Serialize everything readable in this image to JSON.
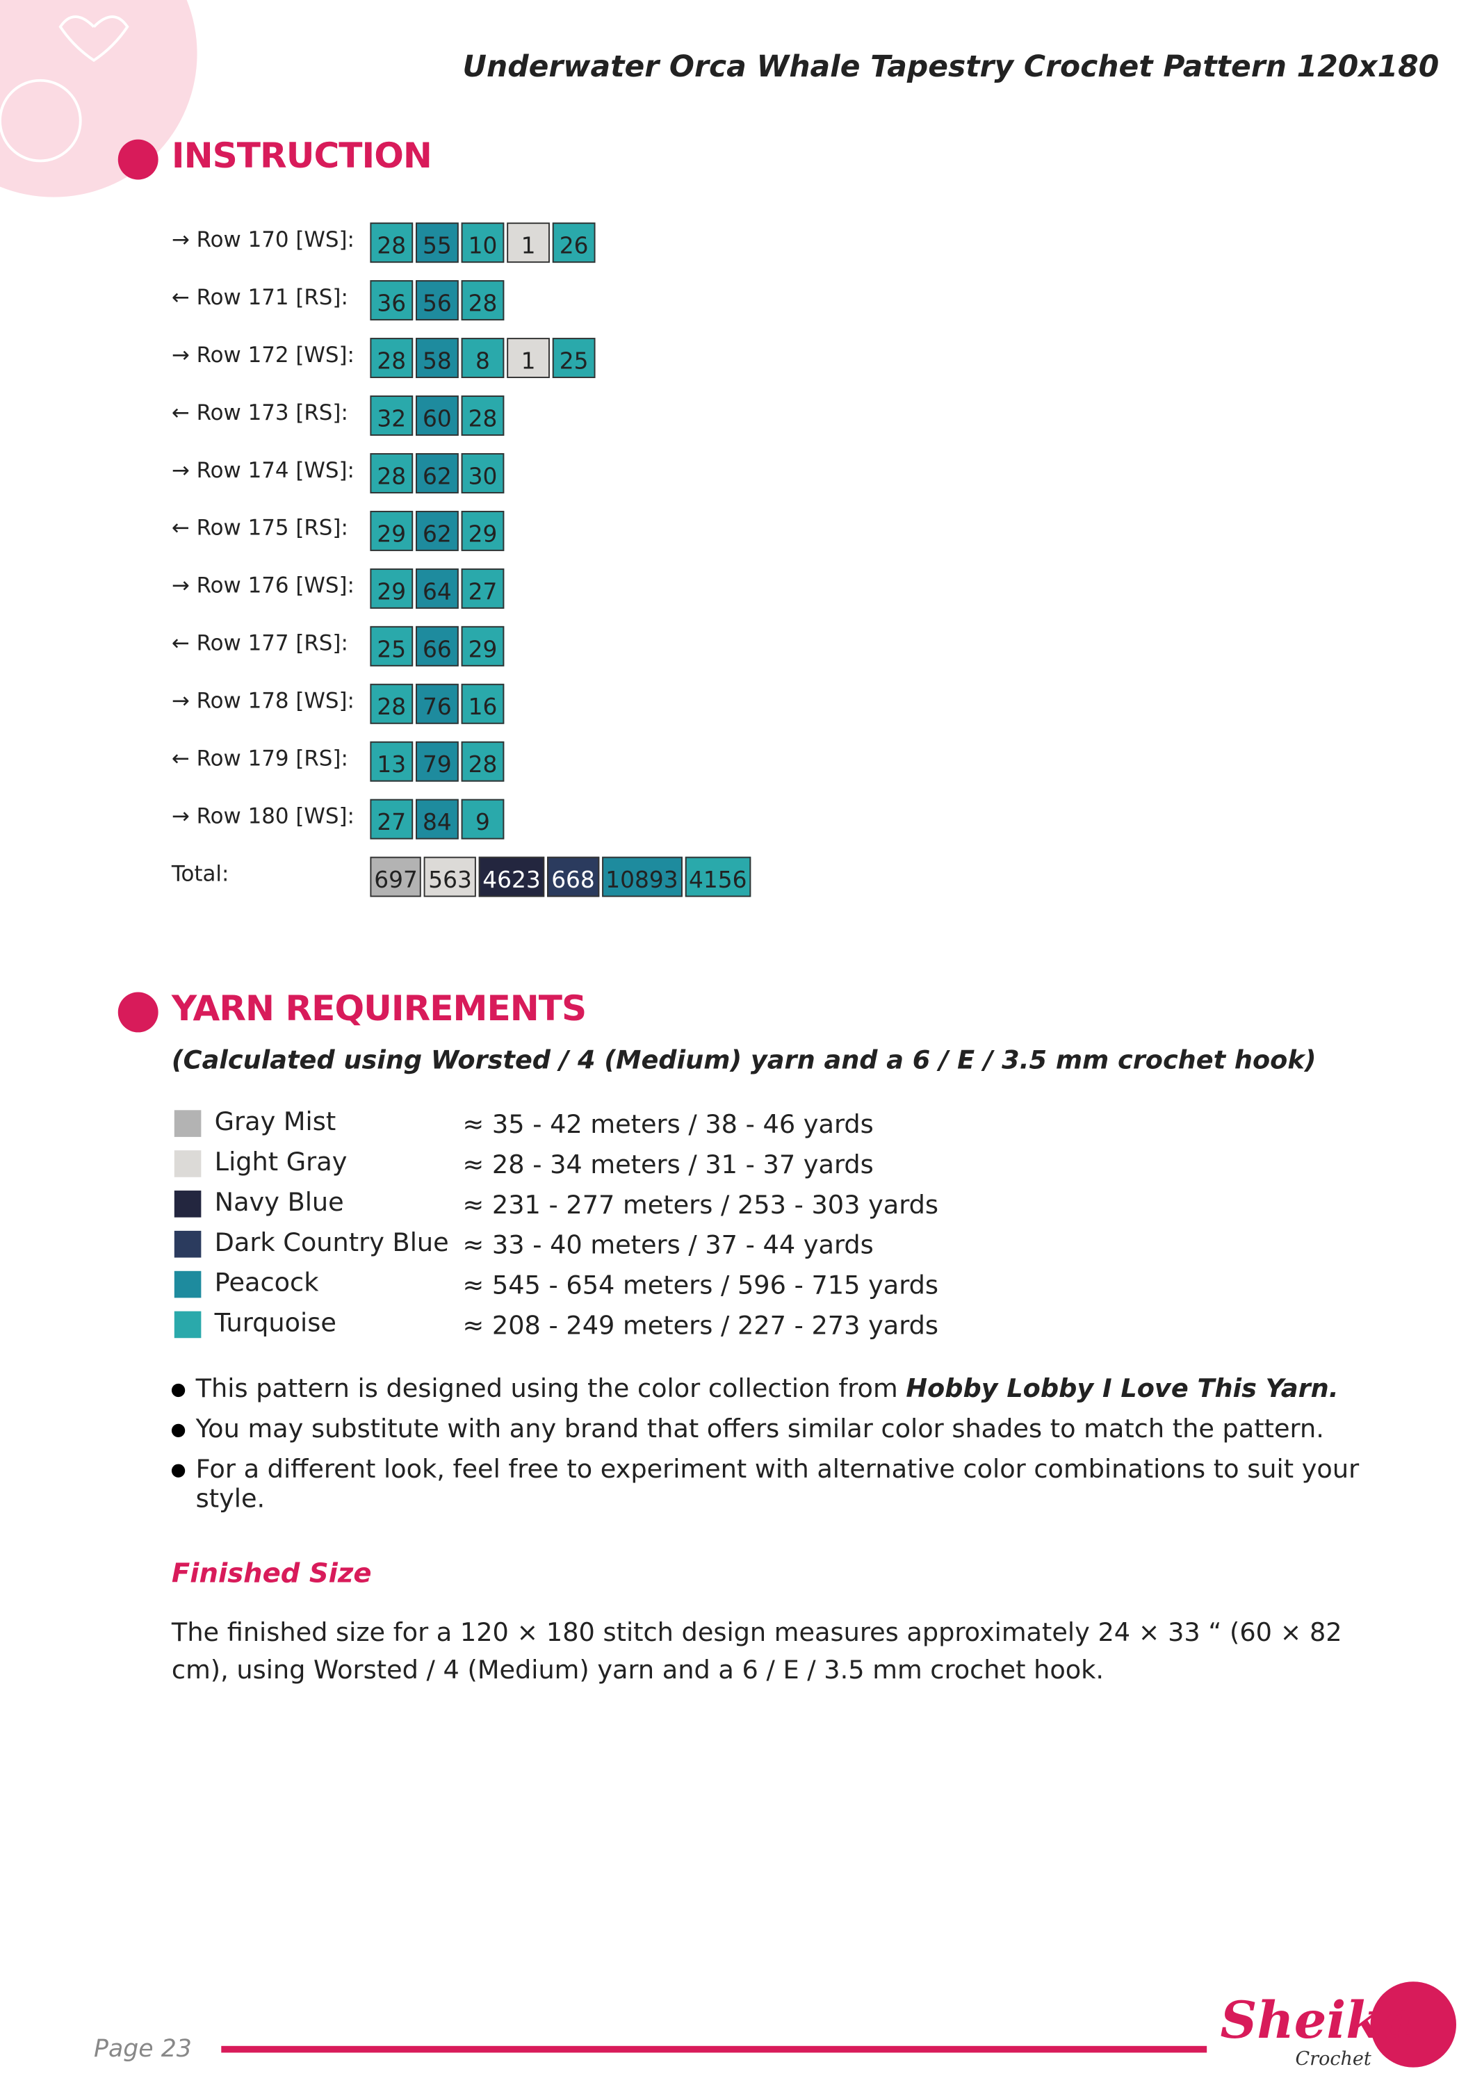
{
  "header": {
    "title": "Underwater Orca Whale Tapestry Crochet Pattern 120x180"
  },
  "instruction": {
    "heading": "INSTRUCTION",
    "rows": [
      {
        "label": "→ Row 170 [WS]:",
        "cells": [
          {
            "value": 28,
            "color": "#2aa9ab"
          },
          {
            "value": 55,
            "color": "#1e8b9e"
          },
          {
            "value": 10,
            "color": "#2aa9ab"
          },
          {
            "value": 1,
            "color": "#dcdad7"
          },
          {
            "value": 26,
            "color": "#2aa9ab"
          }
        ]
      },
      {
        "label": "← Row 171 [RS]:",
        "cells": [
          {
            "value": 36,
            "color": "#2aa9ab"
          },
          {
            "value": 56,
            "color": "#1e8b9e"
          },
          {
            "value": 28,
            "color": "#2aa9ab"
          }
        ]
      },
      {
        "label": "→ Row 172 [WS]:",
        "cells": [
          {
            "value": 28,
            "color": "#2aa9ab"
          },
          {
            "value": 58,
            "color": "#1e8b9e"
          },
          {
            "value": 8,
            "color": "#2aa9ab"
          },
          {
            "value": 1,
            "color": "#dcdad7"
          },
          {
            "value": 25,
            "color": "#2aa9ab"
          }
        ]
      },
      {
        "label": "← Row 173 [RS]:",
        "cells": [
          {
            "value": 32,
            "color": "#2aa9ab"
          },
          {
            "value": 60,
            "color": "#1e8b9e"
          },
          {
            "value": 28,
            "color": "#2aa9ab"
          }
        ]
      },
      {
        "label": "→ Row 174 [WS]:",
        "cells": [
          {
            "value": 28,
            "color": "#2aa9ab"
          },
          {
            "value": 62,
            "color": "#1e8b9e"
          },
          {
            "value": 30,
            "color": "#2aa9ab"
          }
        ]
      },
      {
        "label": "← Row 175 [RS]:",
        "cells": [
          {
            "value": 29,
            "color": "#2aa9ab"
          },
          {
            "value": 62,
            "color": "#1e8b9e"
          },
          {
            "value": 29,
            "color": "#2aa9ab"
          }
        ]
      },
      {
        "label": "→ Row 176 [WS]:",
        "cells": [
          {
            "value": 29,
            "color": "#2aa9ab"
          },
          {
            "value": 64,
            "color": "#1e8b9e"
          },
          {
            "value": 27,
            "color": "#2aa9ab"
          }
        ]
      },
      {
        "label": "← Row 177 [RS]:",
        "cells": [
          {
            "value": 25,
            "color": "#2aa9ab"
          },
          {
            "value": 66,
            "color": "#1e8b9e"
          },
          {
            "value": 29,
            "color": "#2aa9ab"
          }
        ]
      },
      {
        "label": "→ Row 178 [WS]:",
        "cells": [
          {
            "value": 28,
            "color": "#2aa9ab"
          },
          {
            "value": 76,
            "color": "#1e8b9e"
          },
          {
            "value": 16,
            "color": "#2aa9ab"
          }
        ]
      },
      {
        "label": "← Row 179 [RS]:",
        "cells": [
          {
            "value": 13,
            "color": "#2aa9ab"
          },
          {
            "value": 79,
            "color": "#1e8b9e"
          },
          {
            "value": 28,
            "color": "#2aa9ab"
          }
        ]
      },
      {
        "label": "→ Row 180 [WS]:",
        "cells": [
          {
            "value": 27,
            "color": "#2aa9ab"
          },
          {
            "value": 84,
            "color": "#1e8b9e"
          },
          {
            "value": 9,
            "color": "#2aa9ab"
          }
        ]
      }
    ],
    "total": {
      "label": "Total:",
      "cells": [
        {
          "value": 697,
          "color": "#b3b3b3"
        },
        {
          "value": 563,
          "color": "#dcdad7"
        },
        {
          "value": 4623,
          "color": "#23263f"
        },
        {
          "value": 668,
          "color": "#2b3b5e"
        },
        {
          "value": 10893,
          "color": "#1e8b9e"
        },
        {
          "value": 4156,
          "color": "#2aa9ab"
        }
      ]
    }
  },
  "yarn": {
    "heading": "YARN REQUIREMENTS",
    "subtitle": "(Calculated using Worsted / 4 (Medium) yarn and a 6 / E / 3.5 mm crochet hook)",
    "items": [
      {
        "name": "Gray Mist",
        "color": "#b3b3b3",
        "amount": "≈ 35 - 42 meters / 38 - 46 yards"
      },
      {
        "name": "Light Gray",
        "color": "#dcdad7",
        "amount": "≈ 28 - 34 meters / 31 - 37 yards"
      },
      {
        "name": "Navy Blue",
        "color": "#23263f",
        "amount": "≈ 231 - 277 meters / 253 - 303 yards"
      },
      {
        "name": "Dark Country Blue",
        "color": "#2b3b5e",
        "amount": "≈ 33 - 40 meters / 37 - 44 yards"
      },
      {
        "name": "Peacock",
        "color": "#1e8b9e",
        "amount": "≈ 545 - 654 meters / 596 - 715 yards"
      },
      {
        "name": "Turquoise",
        "color": "#2aa9ab",
        "amount": "≈ 208 - 249 meters / 227 - 273 yards"
      }
    ],
    "notes": [
      [
        "This pattern is designed using the color collection from ",
        "Hobby Lobby I Love This Yarn."
      ],
      [
        "You may substitute with any brand that offers similar color shades to match the pattern."
      ],
      [
        "For a different look, feel free to experiment with alternative color combinations to suit your style."
      ]
    ]
  },
  "finished": {
    "heading": "Finished Size",
    "text": "The finished size for a 120 × 180 stitch design measures approximately 24 × 33 “ (60 × 82 cm), using Worsted / 4 (Medium) yarn and a 6 / E / 3.5 mm crochet hook."
  },
  "footer": {
    "page": "Page 23",
    "logo": "Sheika",
    "logo_sub": "Crochet"
  }
}
